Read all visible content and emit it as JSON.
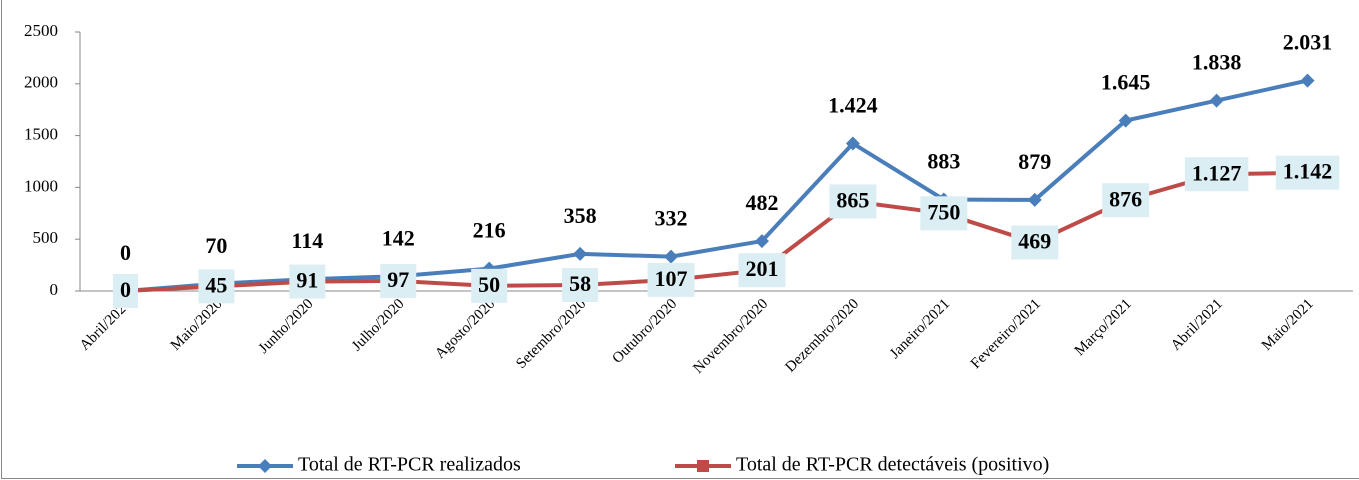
{
  "chart_data": {
    "type": "line",
    "categories": [
      "Abril/2020",
      "Maio/2020",
      "Junho/2020",
      "Julho/2020",
      "Agosto/2020",
      "Setembro/2020",
      "Outubro/2020",
      "Novembro/2020",
      "Dezembro/2020",
      "Janeiro/2021",
      "Fevereiro/2021",
      "Março/2021",
      "Abril/2021",
      "Maio/2021"
    ],
    "series": [
      {
        "name": "Total de RT-PCR realizados",
        "color": "#4a7ebb",
        "values": [
          0,
          70,
          114,
          142,
          216,
          358,
          332,
          482,
          1424,
          883,
          879,
          1645,
          1838,
          2031
        ],
        "value_labels": [
          "0",
          "70",
          "114",
          "142",
          "216",
          "358",
          "332",
          "482",
          "1.424",
          "883",
          "879",
          "1.645",
          "1.838",
          "2.031"
        ]
      },
      {
        "name": "Total de RT-PCR detectáveis (positivo)",
        "color": "#be4b48",
        "values": [
          0,
          45,
          91,
          97,
          50,
          58,
          107,
          201,
          865,
          750,
          469,
          876,
          1127,
          1142
        ],
        "value_labels": [
          "0",
          "45",
          "91",
          "97",
          "50",
          "58",
          "107",
          "201",
          "865",
          "750",
          "469",
          "876",
          "1.127",
          "1.142"
        ]
      }
    ],
    "ylim": [
      0,
      2500
    ],
    "yticks": [
      0,
      500,
      1000,
      1500,
      2000,
      2500
    ],
    "grid": false,
    "legend": "bottom"
  }
}
